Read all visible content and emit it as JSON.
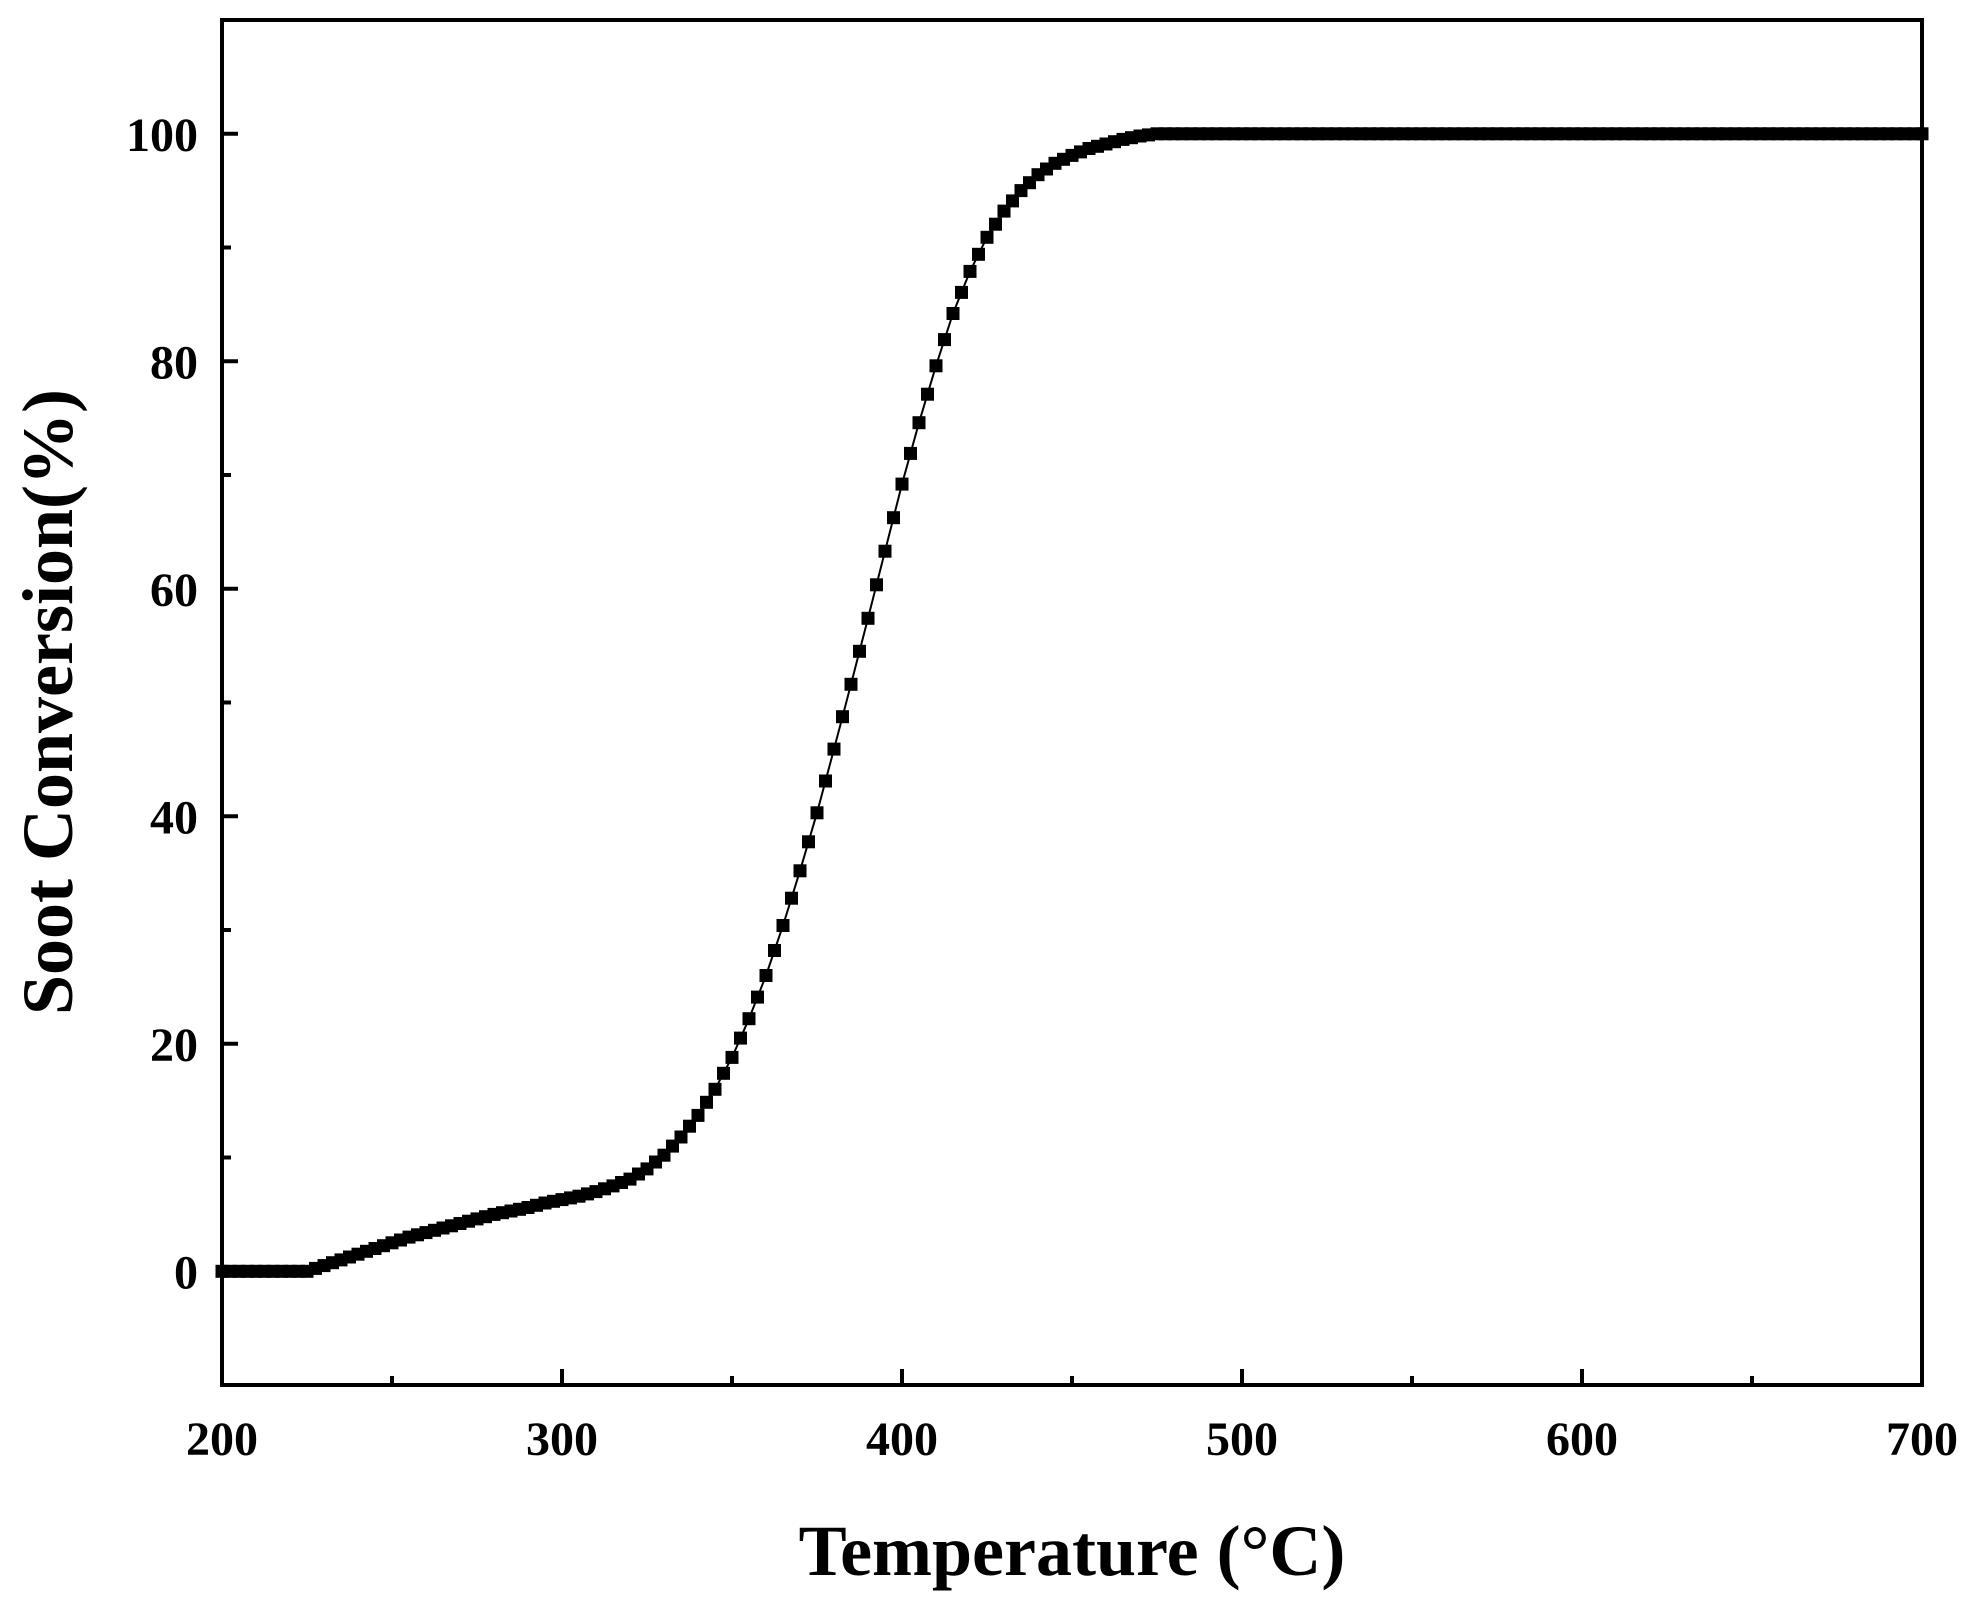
{
  "chart_data": {
    "type": "scatter",
    "title": "",
    "xlabel": "Temperature (°C)",
    "ylabel": "Soot Conversion(%)",
    "xlim": [
      200,
      700
    ],
    "ylim": [
      -10,
      110
    ],
    "x_ticks": [
      "200",
      "300",
      "400",
      "500",
      "600",
      "700"
    ],
    "y_ticks": [
      "0",
      "20",
      "40",
      "60",
      "80",
      "100"
    ],
    "grid": false,
    "legend": "none",
    "marker": "square",
    "connecting_line": true,
    "color": "#000000",
    "series": [
      {
        "x": [
          200,
          205,
          210,
          215,
          220,
          225,
          230,
          235,
          240,
          245,
          250,
          255,
          260,
          265,
          270,
          275,
          280,
          285,
          290,
          295,
          300,
          305,
          310,
          315,
          320,
          325,
          330,
          335,
          340,
          345,
          350,
          355,
          360,
          365,
          370,
          375,
          380,
          385,
          390,
          395,
          400,
          405,
          410,
          415,
          420,
          425,
          430,
          435,
          440,
          445,
          450,
          455,
          460,
          465,
          470,
          475,
          480,
          485,
          490,
          500,
          550,
          600,
          650,
          700
        ],
        "y": [
          0,
          0,
          0,
          0,
          0,
          0,
          0.5,
          1.0,
          1.5,
          2.0,
          2.5,
          3.0,
          3.4,
          3.8,
          4.2,
          4.6,
          5.0,
          5.3,
          5.6,
          6.0,
          6.3,
          6.6,
          7.0,
          7.5,
          8.1,
          9.0,
          10.2,
          11.8,
          13.7,
          16.0,
          18.8,
          22.2,
          26.0,
          30.4,
          35.2,
          40.3,
          45.9,
          51.6,
          57.4,
          63.3,
          69.2,
          74.6,
          79.6,
          84.2,
          87.9,
          90.9,
          93.2,
          95.0,
          96.4,
          97.4,
          98.1,
          98.7,
          99.1,
          99.5,
          99.8,
          100,
          100,
          100,
          100,
          100,
          100,
          100,
          100,
          100
        ]
      }
    ]
  }
}
